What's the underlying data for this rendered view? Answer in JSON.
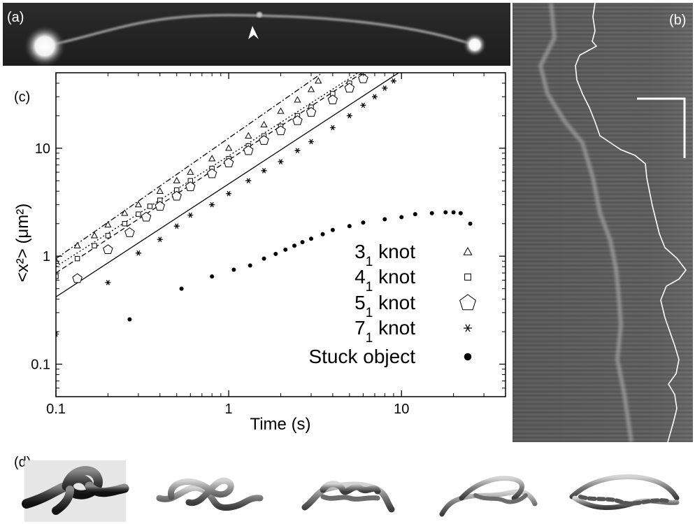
{
  "panels": {
    "a": {
      "label": "(a)"
    },
    "b": {
      "label": "(b)"
    },
    "c": {
      "label": "(c)"
    },
    "d": {
      "label": "(d)"
    }
  },
  "chart_data": {
    "type": "scatter",
    "xlabel": "Time (s)",
    "ylabel": "<x²> (μm²)",
    "xscale": "log",
    "yscale": "log",
    "xlim": [
      0.1,
      40
    ],
    "ylim": [
      0.05,
      50
    ],
    "xticks": [
      {
        "v": 0.1,
        "label": "0.1"
      },
      {
        "v": 1,
        "label": "1"
      },
      {
        "v": 10,
        "label": "10"
      }
    ],
    "yticks": [
      {
        "v": 0.1,
        "label": "0.1"
      },
      {
        "v": 1,
        "label": "1"
      },
      {
        "v": 10,
        "label": "10"
      }
    ],
    "legend_position": "bottom-right",
    "series": [
      {
        "name": "3₁ knot",
        "label_main": "3",
        "label_sub": "1",
        "label_tail": " knot",
        "marker": "triangle",
        "x": [
          0.1,
          0.133,
          0.167,
          0.2,
          0.25,
          0.3,
          0.4,
          0.5,
          0.6,
          0.8,
          1.0,
          1.3,
          1.6,
          2.0,
          2.5,
          3.0,
          3.3
        ],
        "y": [
          0.9,
          1.25,
          1.55,
          1.95,
          2.5,
          3.0,
          4.0,
          5.0,
          6.0,
          8.0,
          10.0,
          13.0,
          16.5,
          22.0,
          28.0,
          35.0,
          42.0
        ]
      },
      {
        "name": "4₁ knot",
        "label_main": "4",
        "label_sub": "1",
        "label_tail": " knot",
        "marker": "square",
        "x": [
          0.1,
          0.133,
          0.167,
          0.2,
          0.25,
          0.3,
          0.35,
          0.4,
          0.5,
          0.6,
          0.8,
          1.0,
          1.3,
          1.6,
          2.0,
          2.5,
          3.0,
          4.0,
          5.0,
          6.0
        ],
        "y": [
          0.65,
          0.95,
          1.25,
          1.55,
          2.0,
          2.45,
          2.9,
          3.3,
          4.1,
          5.0,
          6.5,
          8.0,
          10.5,
          13.0,
          16.0,
          20.0,
          24.0,
          32.0,
          40.0,
          46.0
        ]
      },
      {
        "name": "5₁ knot",
        "label_main": "5",
        "label_sub": "1",
        "label_tail": " knot",
        "marker": "pentagon",
        "x": [
          0.133,
          0.2,
          0.267,
          0.333,
          0.4,
          0.5,
          0.6,
          0.8,
          1.0,
          1.3,
          1.6,
          2.0,
          2.5,
          3.0,
          4.0,
          5.0,
          6.0
        ],
        "y": [
          0.62,
          1.15,
          1.65,
          2.3,
          2.9,
          3.6,
          4.4,
          5.8,
          7.3,
          9.5,
          11.8,
          14.5,
          18.0,
          21.5,
          28.0,
          36.0,
          44.0
        ]
      },
      {
        "name": "7₁ knot",
        "label_main": "7",
        "label_sub": "1",
        "label_tail": " knot",
        "marker": "asterisk",
        "x": [
          0.1,
          0.2,
          0.3,
          0.4,
          0.5,
          0.6,
          0.8,
          1.0,
          1.3,
          1.6,
          2.0,
          2.5,
          3.0,
          4.0,
          5.0,
          6.0,
          7.0,
          8.0,
          9.0
        ],
        "y": [
          0.19,
          0.57,
          1.07,
          1.43,
          1.9,
          2.4,
          3.0,
          3.8,
          5.0,
          6.2,
          7.5,
          9.5,
          11.5,
          15.5,
          20.0,
          25.0,
          30.0,
          36.0,
          42.0
        ]
      },
      {
        "name": "Stuck object",
        "label_main": "Stuck object",
        "label_sub": "",
        "label_tail": "",
        "marker": "dot",
        "x": [
          0.267,
          0.533,
          0.8,
          1.07,
          1.33,
          1.6,
          1.87,
          2.13,
          2.4,
          2.67,
          3.0,
          3.5,
          4.0,
          5.0,
          6.0,
          8.0,
          10.0,
          12.0,
          15.0,
          18.0,
          20.0,
          22.0,
          25.0
        ],
        "y": [
          0.26,
          0.5,
          0.65,
          0.75,
          0.82,
          0.95,
          1.05,
          1.15,
          1.25,
          1.35,
          1.45,
          1.6,
          1.75,
          1.9,
          2.05,
          2.2,
          2.3,
          2.45,
          2.5,
          2.55,
          2.55,
          2.5,
          2.0
        ]
      }
    ],
    "fit_lines": [
      {
        "style": "solid",
        "x": [
          0.1,
          10.0
        ],
        "y": [
          0.42,
          52.0
        ]
      },
      {
        "style": "dashed",
        "x": [
          0.1,
          6.5
        ],
        "y": [
          0.7,
          55.0
        ]
      },
      {
        "style": "dotted",
        "x": [
          0.1,
          6.5
        ],
        "y": [
          0.8,
          58.0
        ]
      },
      {
        "style": "dash-dot",
        "x": [
          0.1,
          3.8
        ],
        "y": [
          0.95,
          55.0
        ]
      }
    ],
    "image_annotations": {
      "panel_a_arrowhead": true,
      "panel_b_scale_bar": true
    }
  }
}
